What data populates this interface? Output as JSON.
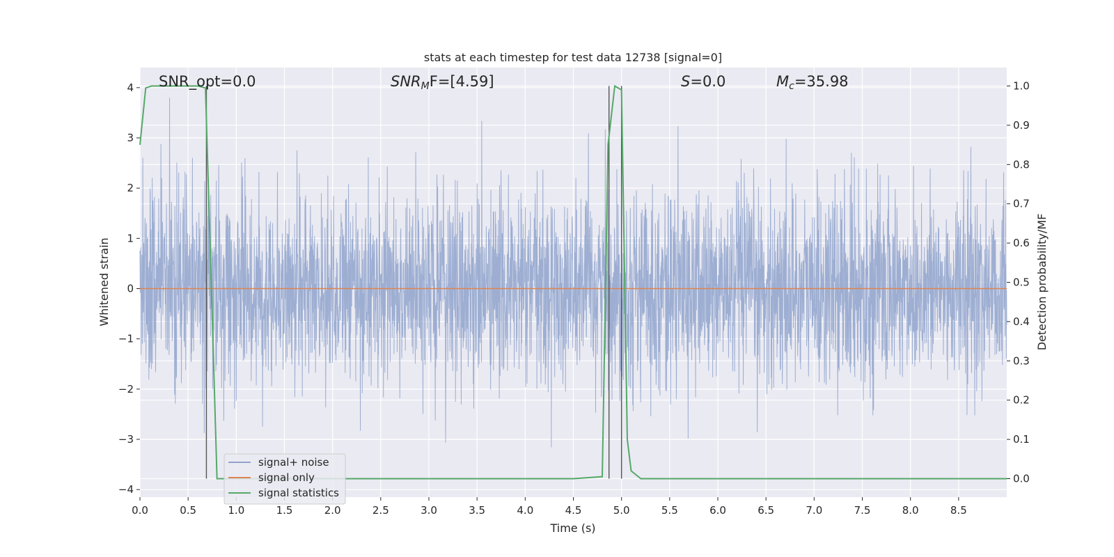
{
  "chart_data": {
    "type": "line",
    "title": "stats at each timestep for test data 12738 [signal=0]",
    "xlabel": "Time (s)",
    "ylabel_left": "Whitened strain",
    "ylabel_right": "Detection probability/MF",
    "xlim": [
      0.0,
      9.0
    ],
    "ylim_left": [
      -4.15,
      4.4
    ],
    "ylim_right": [
      -0.047,
      1.047
    ],
    "x_ticks": [
      "0.0",
      "0.5",
      "1.0",
      "1.5",
      "2.0",
      "2.5",
      "3.0",
      "3.5",
      "4.0",
      "4.5",
      "5.0",
      "5.5",
      "6.0",
      "6.5",
      "7.0",
      "7.5",
      "8.0",
      "8.5"
    ],
    "y_ticks_left": [
      "4",
      "3",
      "2",
      "1",
      "0",
      "−1",
      "−2",
      "−3",
      "−4"
    ],
    "y_ticks_right": [
      "1.0",
      "0.9",
      "0.8",
      "0.7",
      "0.6",
      "0.5",
      "0.4",
      "0.3",
      "0.2",
      "0.1",
      "0.0"
    ],
    "grid": true,
    "legend_position": "lower-left",
    "annotations": {
      "snr_opt": "SNR_opt=0.0",
      "snr_mf_base": "SNR",
      "snr_mf_sub": "M",
      "snr_mf_rest": "F=[4.59]",
      "s_label": "S",
      "s_value": "=0.0",
      "mc_base": "M",
      "mc_sub": "c",
      "mc_value": "=35.98"
    },
    "series": [
      {
        "name": "signal+ noise",
        "color": "#8fa3cc",
        "axis": "left",
        "description_values": "whitened strain noise, mostly within [-2.5, 2.5], peaks near 3.8 and -3.8"
      },
      {
        "name": "signal only",
        "color": "#dd8452",
        "axis": "left",
        "x": [
          0.0,
          9.0
        ],
        "y": [
          0.0,
          0.0
        ]
      },
      {
        "name": "signal statistics",
        "color": "#55a868",
        "axis": "right",
        "x": [
          0.0,
          0.06,
          0.12,
          0.2,
          0.3,
          0.4,
          0.5,
          0.6,
          0.68,
          0.74,
          0.8,
          1.0,
          2.0,
          3.0,
          3.9,
          4.5,
          4.8,
          4.86,
          4.93,
          5.0,
          5.06,
          5.1,
          5.2,
          6.0,
          7.0,
          8.0,
          9.0
        ],
        "y": [
          0.85,
          0.995,
          1.0,
          1.0,
          1.0,
          1.0,
          1.0,
          1.0,
          0.995,
          0.5,
          0.0,
          0.0,
          0.0,
          0.0,
          0.0,
          0.0,
          0.005,
          0.85,
          1.0,
          0.99,
          0.1,
          0.02,
          0.0,
          0.0,
          0.0,
          0.0,
          0.0
        ]
      }
    ],
    "vertical_lines": [
      0.69,
      4.87,
      5.0
    ]
  },
  "colors": {
    "plot_bg": "#eaeaf2",
    "grid": "#ffffff",
    "vline": "#555555",
    "text": "#262626"
  }
}
